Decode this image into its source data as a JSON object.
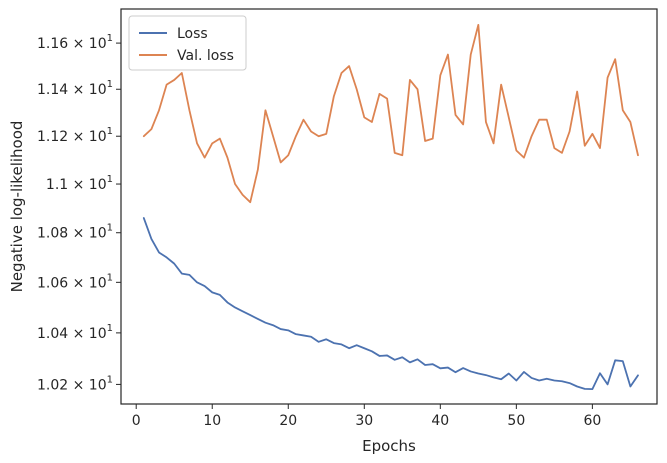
{
  "chart_data": {
    "type": "line",
    "title": "",
    "xlabel": "Epochs",
    "ylabel": "Negative log-likelihood",
    "xlim": [
      -2,
      68.5
    ],
    "ylim": [
      10.125,
      10.175
    ],
    "xticks": [
      0,
      10,
      20,
      30,
      40,
      50,
      60
    ],
    "yticks": [
      {
        "value": 10.2,
        "mantissa": "1.02",
        "base": "10",
        "exp": "1"
      },
      {
        "value": 10.4,
        "mantissa": "1.04",
        "base": "10",
        "exp": "1"
      },
      {
        "value": 10.6,
        "mantissa": "1.06",
        "base": "10",
        "exp": "1"
      },
      {
        "value": 10.8,
        "mantissa": "1.08",
        "base": "10",
        "exp": "1"
      },
      {
        "value": 11.0,
        "mantissa": "1.1",
        "base": "10",
        "exp": "1"
      },
      {
        "value": 11.2,
        "mantissa": "1.12",
        "base": "10",
        "exp": "1"
      },
      {
        "value": 11.4,
        "mantissa": "1.14",
        "base": "10",
        "exp": "1"
      },
      {
        "value": 11.6,
        "mantissa": "1.16",
        "base": "10",
        "exp": "1"
      }
    ],
    "yscale": "log",
    "grid": false,
    "legend": "upper-left",
    "x": [
      1,
      2,
      3,
      4,
      5,
      6,
      7,
      8,
      9,
      10,
      11,
      12,
      13,
      14,
      15,
      16,
      17,
      18,
      19,
      20,
      21,
      22,
      23,
      24,
      25,
      26,
      27,
      28,
      29,
      30,
      31,
      32,
      33,
      34,
      35,
      36,
      37,
      38,
      39,
      40,
      41,
      42,
      43,
      44,
      45,
      46,
      47,
      48,
      49,
      50,
      51,
      52,
      53,
      54,
      55,
      56,
      57,
      58,
      59,
      60,
      61,
      62,
      63,
      64,
      65,
      66
    ],
    "series": [
      {
        "name": "Loss",
        "color": "#4c72b0",
        "values": [
          10.86,
          10.775,
          10.72,
          10.7,
          10.675,
          10.635,
          10.63,
          10.6,
          10.585,
          10.56,
          10.55,
          10.52,
          10.5,
          10.485,
          10.47,
          10.455,
          10.44,
          10.43,
          10.415,
          10.41,
          10.395,
          10.39,
          10.385,
          10.365,
          10.375,
          10.36,
          10.355,
          10.34,
          10.352,
          10.34,
          10.328,
          10.31,
          10.312,
          10.295,
          10.305,
          10.285,
          10.297,
          10.275,
          10.278,
          10.262,
          10.265,
          10.247,
          10.263,
          10.25,
          10.242,
          10.236,
          10.227,
          10.22,
          10.242,
          10.215,
          10.248,
          10.225,
          10.215,
          10.222,
          10.215,
          10.212,
          10.205,
          10.192,
          10.183,
          10.182,
          10.243,
          10.2,
          10.293,
          10.29,
          10.192,
          10.235
        ]
      },
      {
        "name": "Val. loss",
        "color": "#dd8452",
        "values": [
          11.2,
          11.23,
          11.31,
          11.42,
          11.44,
          11.47,
          11.31,
          11.17,
          11.11,
          11.17,
          11.19,
          11.11,
          11.0,
          10.955,
          10.925,
          11.06,
          11.31,
          11.2,
          11.09,
          11.12,
          11.2,
          11.27,
          11.22,
          11.2,
          11.21,
          11.37,
          11.47,
          11.5,
          11.4,
          11.28,
          11.26,
          11.38,
          11.36,
          11.13,
          11.12,
          11.44,
          11.4,
          11.18,
          11.19,
          11.46,
          11.55,
          11.29,
          11.25,
          11.55,
          11.68,
          11.26,
          11.17,
          11.42,
          11.28,
          11.14,
          11.11,
          11.2,
          11.27,
          11.27,
          11.15,
          11.13,
          11.22,
          11.39,
          11.16,
          11.21,
          11.15,
          11.45,
          11.53,
          11.31,
          11.26,
          11.12
        ]
      }
    ]
  }
}
